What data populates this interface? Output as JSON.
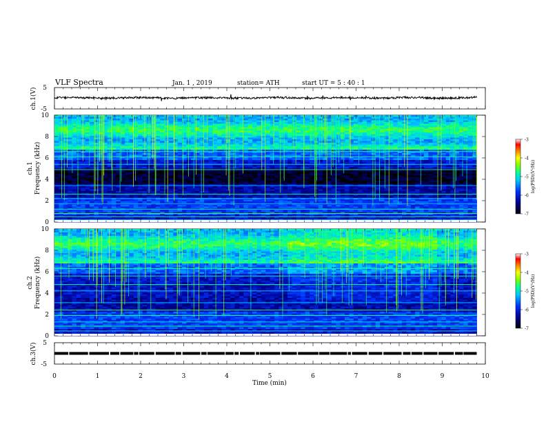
{
  "header": {
    "title": "VLF  Spectra",
    "date": "Jan.  1  , 2019",
    "station": "station= ATH",
    "start": "start  UT  =    5  : 40 : 1"
  },
  "chart_data": [
    {
      "type": "line",
      "panel": "ch1-waveform",
      "ylabel": "ch.1(V)",
      "yticks": [
        "5",
        "-5"
      ],
      "ylim": [
        -5,
        5
      ],
      "xlim": [
        0,
        10
      ],
      "data_xrange": [
        0,
        9.8
      ],
      "approx_level": 0.2,
      "color": "#000000"
    },
    {
      "type": "heatmap",
      "panel": "ch1-spectrogram",
      "ylabel": "ch.1\nFrequency  (kHz)",
      "ylim": [
        0,
        10
      ],
      "yticks": [
        "10",
        "8",
        "6",
        "4",
        "2",
        "0"
      ],
      "xlim": [
        0,
        10
      ],
      "data_xrange": [
        0,
        9.8
      ],
      "value_label": "log(PSD)(V²/Hz)",
      "colorbar_ticks": [
        "-3",
        "-4",
        "-5",
        "-6",
        "-7"
      ],
      "colorbar_range": [
        -7,
        -3
      ]
    },
    {
      "type": "heatmap",
      "panel": "ch2-spectrogram",
      "ylabel": "ch.2\nFrequency  (kHz)",
      "ylim": [
        0,
        10
      ],
      "yticks": [
        "10",
        "8",
        "6",
        "4",
        "2",
        "0"
      ],
      "xlim": [
        0,
        10
      ],
      "data_xrange": [
        0,
        9.8
      ],
      "value_label": "log(PSD)(V²/Hz)",
      "colorbar_ticks": [
        "-3",
        "-4",
        "-5",
        "-6",
        "-7"
      ],
      "colorbar_range": [
        -7,
        -3
      ]
    },
    {
      "type": "line",
      "panel": "ch3-waveform",
      "ylabel": "ch.3(V)",
      "yticks": [
        "5",
        "-5"
      ],
      "ylim": [
        -5,
        5
      ],
      "xlim": [
        0,
        10
      ],
      "data_xrange": [
        0,
        9.8
      ],
      "approx_level": 0,
      "color": "#000000"
    }
  ],
  "xaxis": {
    "label": "Time  (min)",
    "ticks": [
      "0",
      "1",
      "2",
      "3",
      "4",
      "5",
      "6",
      "7",
      "8",
      "9",
      "10"
    ]
  }
}
